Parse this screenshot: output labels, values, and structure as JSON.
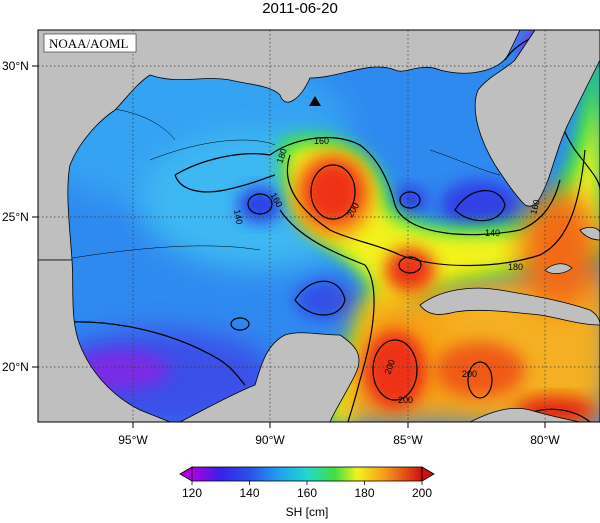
{
  "map": {
    "title": "2011-06-20",
    "credit": "NOAA/AOML",
    "lon_ticks": [
      "95°W",
      "90°W",
      "85°W",
      "80°W"
    ],
    "lat_ticks": [
      "30°N",
      "25°N",
      "20°N"
    ],
    "contour_labels": [
      "160",
      "180",
      "160",
      "140",
      "200",
      "140",
      "180",
      "160",
      "200",
      "200",
      "200"
    ],
    "marker_symbol": "triangle-marker"
  },
  "colorbar": {
    "label": "SH [cm]",
    "ticks": [
      "120",
      "140",
      "160",
      "180",
      "200"
    ],
    "range": [
      120,
      200
    ],
    "colors": [
      "#b000e0",
      "#2a38e6",
      "#1f8cf0",
      "#20d8e8",
      "#2ee04a",
      "#f2f21a",
      "#f7a418",
      "#ee3012",
      "#d01010"
    ]
  },
  "colors": {
    "land": "#bfbfbf",
    "ocean_cool": "#2f8af0",
    "ocean_warm": "#ee3a14"
  }
}
